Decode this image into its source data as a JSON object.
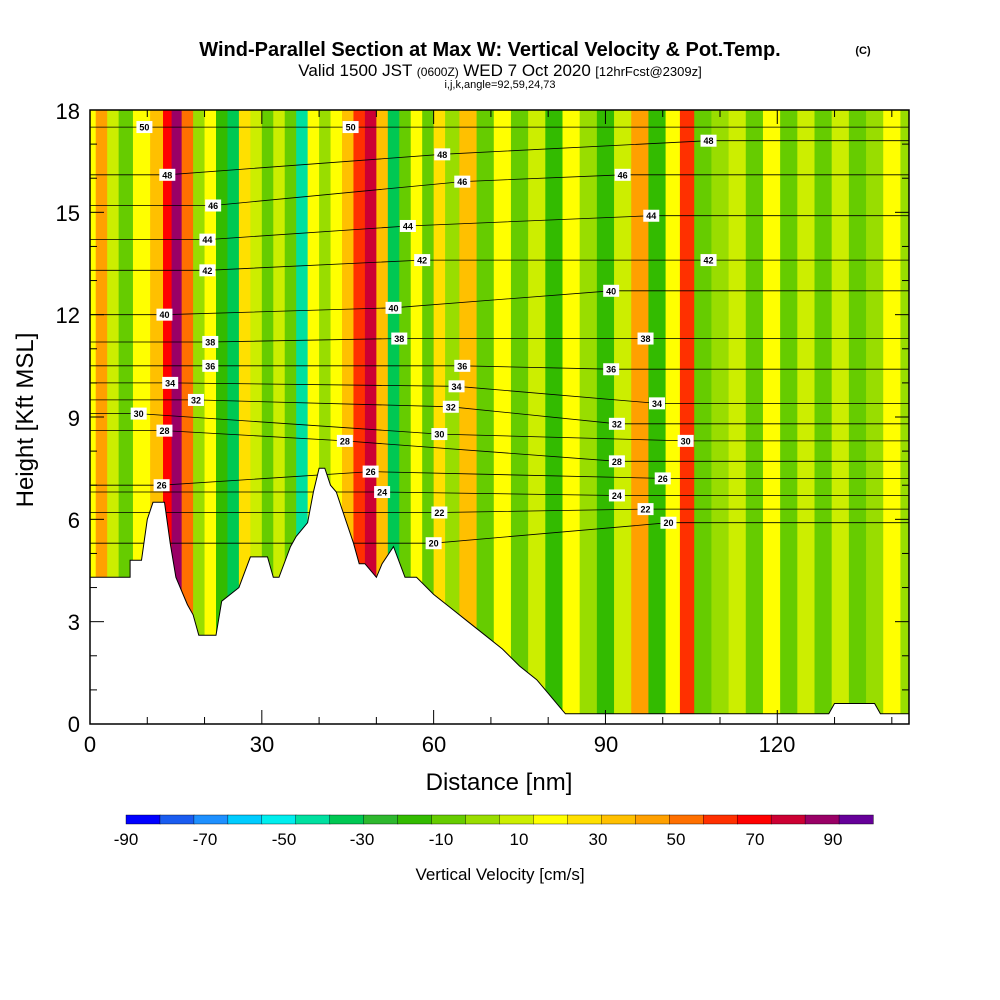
{
  "chart_data": {
    "type": "heatmap",
    "title": "Wind-Parallel Section at Max W: Vertical Velocity & Pot.Temp.",
    "title_mark": "(C)",
    "subtitle": {
      "valid": "Valid 1500 JST",
      "utc": "(0600Z)",
      "date": "WED 7 Oct 2020",
      "forecast": "[12hrFcst@2309z]"
    },
    "section_info": "i,j,k,angle=92,59,24,73",
    "xlabel": "Distance [nm]",
    "ylabel": "Height [Kft MSL]",
    "xlim": [
      0,
      143
    ],
    "ylim": [
      0,
      18
    ],
    "x_ticks": [
      "0",
      "30",
      "60",
      "90",
      "120"
    ],
    "x_tick_values": [
      0,
      30,
      60,
      90,
      120
    ],
    "y_ticks": [
      "0",
      "3",
      "6",
      "9",
      "12",
      "15",
      "18"
    ],
    "y_tick_values": [
      0,
      3,
      6,
      9,
      12,
      15,
      18
    ],
    "colorbar": {
      "label": "Vertical Velocity [cm/s]",
      "tick_labels": [
        "-90",
        "-70",
        "-50",
        "-30",
        "-10",
        "10",
        "30",
        "50",
        "70",
        "90"
      ],
      "colors": [
        "#0000ff",
        "#1a5cf0",
        "#1e90ff",
        "#00ccff",
        "#00eeee",
        "#00e0a0",
        "#00c853",
        "#2eb82e",
        "#33bb00",
        "#66cc00",
        "#99dd00",
        "#ccee00",
        "#ffff00",
        "#ffe000",
        "#ffc000",
        "#ffa000",
        "#ff7000",
        "#ff3000",
        "#ff0000",
        "#cc0033",
        "#990066",
        "#660099"
      ]
    },
    "vertical_velocity_columns_cm_s": [
      {
        "x": 0,
        "w": 15
      },
      {
        "x": 2,
        "w": 40
      },
      {
        "x": 4,
        "w": 5
      },
      {
        "x": 6,
        "w": -12
      },
      {
        "x": 9,
        "w": 10
      },
      {
        "x": 12,
        "w": 35
      },
      {
        "x": 13.5,
        "w": 75
      },
      {
        "x": 15,
        "w": 90
      },
      {
        "x": 17,
        "w": 55
      },
      {
        "x": 19,
        "w": -5
      },
      {
        "x": 21,
        "w": 15
      },
      {
        "x": 23,
        "w": -25
      },
      {
        "x": 25,
        "w": -50
      },
      {
        "x": 27,
        "w": 25
      },
      {
        "x": 29,
        "w": 5
      },
      {
        "x": 31,
        "w": -15
      },
      {
        "x": 33,
        "w": 5
      },
      {
        "x": 35,
        "w": -20
      },
      {
        "x": 37,
        "w": -60
      },
      {
        "x": 39,
        "w": 15
      },
      {
        "x": 41,
        "w": -10
      },
      {
        "x": 43,
        "w": 10
      },
      {
        "x": 45,
        "w": 30
      },
      {
        "x": 47,
        "w": 60
      },
      {
        "x": 49,
        "w": 80
      },
      {
        "x": 51,
        "w": 35
      },
      {
        "x": 53,
        "w": -45
      },
      {
        "x": 55,
        "w": -20
      },
      {
        "x": 57,
        "w": 15
      },
      {
        "x": 59,
        "w": -15
      },
      {
        "x": 61,
        "w": 25
      },
      {
        "x": 63,
        "w": -10
      },
      {
        "x": 66,
        "w": 30
      },
      {
        "x": 69,
        "w": -15
      },
      {
        "x": 72,
        "w": 10
      },
      {
        "x": 75,
        "w": -20
      },
      {
        "x": 78,
        "w": 5
      },
      {
        "x": 81,
        "w": -25
      },
      {
        "x": 84,
        "w": 15
      },
      {
        "x": 87,
        "w": -10
      },
      {
        "x": 90,
        "w": -30
      },
      {
        "x": 93,
        "w": 5
      },
      {
        "x": 96,
        "w": 40
      },
      {
        "x": 99,
        "w": -25
      },
      {
        "x": 102,
        "w": 10
      },
      {
        "x": 104,
        "w": 60
      },
      {
        "x": 107,
        "w": -15
      },
      {
        "x": 110,
        "w": -10
      },
      {
        "x": 113,
        "w": 5
      },
      {
        "x": 116,
        "w": -20
      },
      {
        "x": 119,
        "w": 10
      },
      {
        "x": 122,
        "w": -15
      },
      {
        "x": 125,
        "w": 0
      },
      {
        "x": 128,
        "w": -20
      },
      {
        "x": 131,
        "w": 5
      },
      {
        "x": 134,
        "w": -15
      },
      {
        "x": 137,
        "w": -5
      },
      {
        "x": 140,
        "w": 10
      },
      {
        "x": 143,
        "w": -10
      }
    ],
    "terrain_kft": [
      {
        "x": 0,
        "h": 4.3
      },
      {
        "x": 7,
        "h": 4.3
      },
      {
        "x": 7,
        "h": 4.8
      },
      {
        "x": 9,
        "h": 4.8
      },
      {
        "x": 10,
        "h": 6.0
      },
      {
        "x": 11,
        "h": 6.5
      },
      {
        "x": 13,
        "h": 6.5
      },
      {
        "x": 14,
        "h": 5.3
      },
      {
        "x": 15,
        "h": 4.3
      },
      {
        "x": 17,
        "h": 3.5
      },
      {
        "x": 18,
        "h": 3.2
      },
      {
        "x": 19,
        "h": 2.6
      },
      {
        "x": 22,
        "h": 2.6
      },
      {
        "x": 23,
        "h": 3.6
      },
      {
        "x": 26,
        "h": 4.0
      },
      {
        "x": 28,
        "h": 4.9
      },
      {
        "x": 31,
        "h": 4.9
      },
      {
        "x": 32,
        "h": 4.3
      },
      {
        "x": 33,
        "h": 4.3
      },
      {
        "x": 35,
        "h": 5.2
      },
      {
        "x": 36,
        "h": 5.5
      },
      {
        "x": 38,
        "h": 5.9
      },
      {
        "x": 39,
        "h": 6.8
      },
      {
        "x": 40,
        "h": 7.5
      },
      {
        "x": 41,
        "h": 7.5
      },
      {
        "x": 42,
        "h": 7.0
      },
      {
        "x": 43,
        "h": 6.8
      },
      {
        "x": 44,
        "h": 6.3
      },
      {
        "x": 46,
        "h": 5.3
      },
      {
        "x": 47,
        "h": 4.7
      },
      {
        "x": 48,
        "h": 4.7
      },
      {
        "x": 50,
        "h": 4.3
      },
      {
        "x": 51,
        "h": 4.7
      },
      {
        "x": 53,
        "h": 5.2
      },
      {
        "x": 55,
        "h": 4.3
      },
      {
        "x": 57,
        "h": 4.3
      },
      {
        "x": 60,
        "h": 3.8
      },
      {
        "x": 63,
        "h": 3.4
      },
      {
        "x": 66,
        "h": 3.0
      },
      {
        "x": 69,
        "h": 2.6
      },
      {
        "x": 72,
        "h": 2.2
      },
      {
        "x": 75,
        "h": 1.7
      },
      {
        "x": 78,
        "h": 1.3
      },
      {
        "x": 80,
        "h": 0.9
      },
      {
        "x": 82,
        "h": 0.5
      },
      {
        "x": 83,
        "h": 0.3
      },
      {
        "x": 129,
        "h": 0.3
      },
      {
        "x": 130,
        "h": 0.6
      },
      {
        "x": 137,
        "h": 0.6
      },
      {
        "x": 138,
        "h": 0.3
      },
      {
        "x": 143,
        "h": 0.3
      }
    ],
    "theta_contours": [
      {
        "level": 20,
        "labels": [
          {
            "x": 60,
            "y": 5.3
          },
          {
            "x": 101,
            "y": 5.9
          }
        ]
      },
      {
        "level": 22,
        "labels": [
          {
            "x": 61,
            "y": 6.2
          },
          {
            "x": 97,
            "y": 6.3
          }
        ]
      },
      {
        "level": 24,
        "labels": [
          {
            "x": 51,
            "y": 6.8
          },
          {
            "x": 92,
            "y": 6.7
          }
        ]
      },
      {
        "level": 26,
        "labels": [
          {
            "x": 12.5,
            "y": 7.0
          },
          {
            "x": 49,
            "y": 7.4
          },
          {
            "x": 100,
            "y": 7.2
          }
        ]
      },
      {
        "level": 28,
        "labels": [
          {
            "x": 13,
            "y": 8.6
          },
          {
            "x": 44.5,
            "y": 8.3
          },
          {
            "x": 92,
            "y": 7.7
          }
        ]
      },
      {
        "level": 30,
        "labels": [
          {
            "x": 8.5,
            "y": 9.1
          },
          {
            "x": 61,
            "y": 8.5
          },
          {
            "x": 104,
            "y": 8.3
          }
        ]
      },
      {
        "level": 32,
        "labels": [
          {
            "x": 18.5,
            "y": 9.5
          },
          {
            "x": 63,
            "y": 9.3
          },
          {
            "x": 92,
            "y": 8.8
          }
        ]
      },
      {
        "level": 34,
        "labels": [
          {
            "x": 14,
            "y": 10.0
          },
          {
            "x": 64,
            "y": 9.9
          },
          {
            "x": 99,
            "y": 9.4
          }
        ]
      },
      {
        "level": 36,
        "labels": [
          {
            "x": 21,
            "y": 10.5
          },
          {
            "x": 65,
            "y": 10.5
          },
          {
            "x": 91,
            "y": 10.4
          }
        ]
      },
      {
        "level": 38,
        "labels": [
          {
            "x": 21,
            "y": 11.2
          },
          {
            "x": 54,
            "y": 11.3
          },
          {
            "x": 97,
            "y": 11.3
          }
        ]
      },
      {
        "level": 40,
        "labels": [
          {
            "x": 13,
            "y": 12.0
          },
          {
            "x": 53,
            "y": 12.2
          },
          {
            "x": 91,
            "y": 12.7
          }
        ]
      },
      {
        "level": 42,
        "labels": [
          {
            "x": 20.5,
            "y": 13.3
          },
          {
            "x": 58,
            "y": 13.6
          },
          {
            "x": 108,
            "y": 13.6
          }
        ]
      },
      {
        "level": 44,
        "labels": [
          {
            "x": 20.5,
            "y": 14.2
          },
          {
            "x": 55.5,
            "y": 14.6
          },
          {
            "x": 98,
            "y": 14.9
          }
        ]
      },
      {
        "level": 46,
        "labels": [
          {
            "x": 21.5,
            "y": 15.2
          },
          {
            "x": 65,
            "y": 15.9
          },
          {
            "x": 93,
            "y": 16.1
          }
        ]
      },
      {
        "level": 48,
        "labels": [
          {
            "x": 13.5,
            "y": 16.1
          },
          {
            "x": 61.5,
            "y": 16.7
          },
          {
            "x": 108,
            "y": 17.1
          }
        ]
      },
      {
        "level": 50,
        "labels": [
          {
            "x": 9.5,
            "y": 17.5
          },
          {
            "x": 45.5,
            "y": 17.5
          }
        ]
      }
    ]
  }
}
